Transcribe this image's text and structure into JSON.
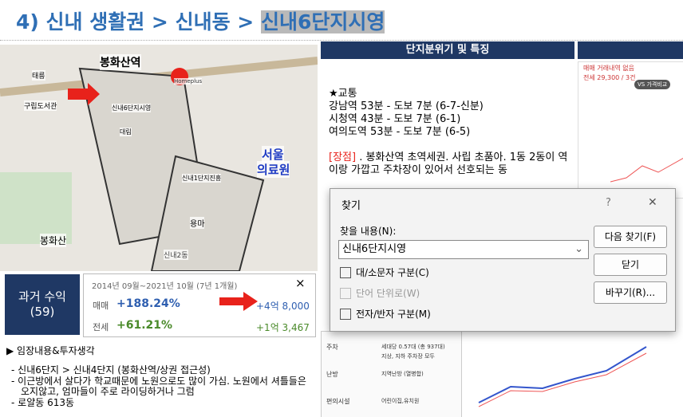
{
  "slide": {
    "title": {
      "prefix": "4) 신내 생활권 > 신내동 > ",
      "highlight": "신내6단지시영"
    },
    "map": {
      "labels": [
        "봉화산역",
        "Homeplus",
        "서울",
        "의료원",
        "봉화산",
        "신내2동",
        "신내6단지시영",
        "신내1단지진흥",
        "태릉",
        "구립도서관",
        "용마",
        "대림"
      ]
    },
    "returns": {
      "label": "과거 수익",
      "count": "(59)",
      "period": "2014년 09월~2021년 10월 (7년 1개월)",
      "close": "×",
      "rows": [
        {
          "type": "매매",
          "rate": "+188.24%",
          "amount": "+4억 8,000"
        },
        {
          "type": "전세",
          "rate": "+61.21%",
          "amount": "+1억 3,467"
        }
      ]
    },
    "notes": {
      "heading": "▶ 임장내용&투자생각",
      "bullets": [
        "신내6단지 > 신내4단지 (봉화산역/상권 접근성)",
        "이근방에서 살다가 학교때문에 노원으로도 많이 가심. 노원에서 셔틀들은 오지않고, 엄마들이 주로 라이딩하거나 그럼",
        "로얄동 613동"
      ]
    },
    "features": {
      "header": "단지분위기 및 특징",
      "transit_title": "★교통",
      "transit": [
        "강남역 53분 - 도보 7분 (6-7-신분)",
        "시청역 43분 - 도보 7분 (6-1)",
        "여의도역 53분 - 도보 7분 (6-5)"
      ],
      "merit_tag": "[장점]",
      "merit": " . 봉화산역 초역세권. 사립 초품아. 1동 2동이 역이랑 가깝고 주차장이 있어서 선호되는 동"
    },
    "table": [
      [
        "주차",
        "세대당 0.57대 (총 937대)",
        "지상, 지하 주차장 모두"
      ],
      [
        "난방",
        "지역난방 (열병합)",
        ""
      ],
      [
        "편의시설",
        "어린이집,유치원",
        ""
      ]
    ],
    "trade": {
      "sale": "매매 거래내역 없음",
      "rent": "전세 29,300 / 3건",
      "compare": "VS 가격비교"
    }
  },
  "dialog": {
    "title": "찾기",
    "help": "?",
    "close": "✕",
    "find_label": "찾을 내용(N):",
    "query": "신내6단지시영",
    "buttons": [
      "다음 찾기(F)",
      "닫기",
      "바꾸기(R)..."
    ],
    "options": [
      "대/소문자 구분(C)",
      "단어 단위로(W)",
      "전자/반자 구분(M)"
    ]
  }
}
